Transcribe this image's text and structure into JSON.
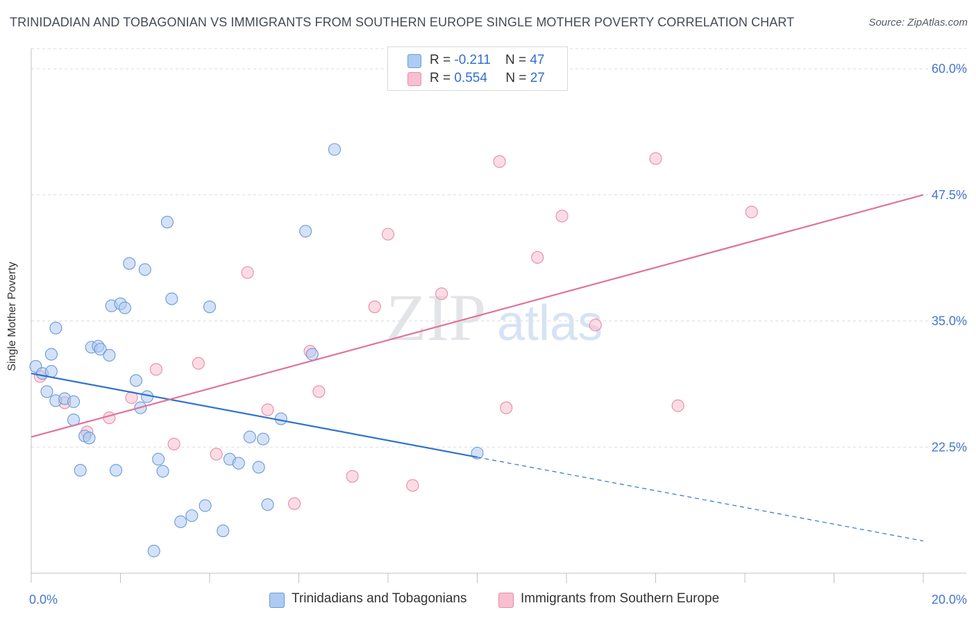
{
  "header": {
    "title": "TRINIDADIAN AND TOBAGONIAN VS IMMIGRANTS FROM SOUTHERN EUROPE SINGLE MOTHER POVERTY CORRELATION CHART",
    "source": "Source: ZipAtlas.com"
  },
  "watermark": {
    "zip": "ZIP",
    "atlas": "atlas"
  },
  "legend": {
    "rows": [
      {
        "r_label": "R = ",
        "r_value": "-0.211",
        "n_label": "N = ",
        "n_value": "47"
      },
      {
        "r_label": "R = ",
        "r_value": "0.554",
        "n_label": "N = ",
        "n_value": "27"
      }
    ]
  },
  "colors": {
    "blue_fill": "#aecbf2",
    "blue_stroke": "#6a9ad8",
    "blue_line": "#2f72cc",
    "pink_fill": "#f7bfd0",
    "pink_stroke": "#e98aa8",
    "pink_line": "#e0729a",
    "tick_label": "#4477cc",
    "grid": "#d8dbe0"
  },
  "chart_data": {
    "type": "scatter",
    "title": "TRINIDADIAN AND TOBAGONIAN VS IMMIGRANTS FROM SOUTHERN EUROPE SINGLE MOTHER POVERTY CORRELATION CHART",
    "xlabel": "",
    "ylabel": "Single Mother Poverty",
    "xlim": [
      0,
      20
    ],
    "ylim": [
      10,
      62
    ],
    "x_tick_labels": [
      "0.0%",
      "20.0%"
    ],
    "x_ticks": [
      0,
      2,
      4,
      6,
      8,
      10,
      12,
      14,
      16,
      18,
      20
    ],
    "y_ticks": [
      22.5,
      35.0,
      47.5,
      60.0
    ],
    "y_tick_labels": [
      "22.5%",
      "35.0%",
      "47.5%",
      "60.0%"
    ],
    "grid": true,
    "legend_position": "top-center",
    "series": [
      {
        "name": "Trinidadians and Tobagonians",
        "r": -0.211,
        "n": 47,
        "trend": {
          "x": [
            0,
            10
          ],
          "y": [
            29.8,
            21.5
          ],
          "dashed_to": [
            20,
            13.2
          ]
        },
        "points": [
          [
            0.1,
            30.5
          ],
          [
            0.25,
            29.8
          ],
          [
            0.35,
            28.0
          ],
          [
            0.45,
            30.0
          ],
          [
            0.55,
            34.3
          ],
          [
            0.45,
            31.7
          ],
          [
            0.55,
            27.1
          ],
          [
            0.75,
            27.3
          ],
          [
            0.95,
            27.0
          ],
          [
            0.95,
            25.2
          ],
          [
            1.1,
            20.2
          ],
          [
            1.2,
            23.6
          ],
          [
            1.3,
            23.4
          ],
          [
            1.35,
            32.4
          ],
          [
            1.5,
            32.5
          ],
          [
            1.55,
            32.2
          ],
          [
            1.75,
            31.6
          ],
          [
            1.8,
            36.5
          ],
          [
            1.9,
            20.2
          ],
          [
            2.0,
            36.7
          ],
          [
            2.1,
            36.3
          ],
          [
            2.2,
            40.7
          ],
          [
            2.35,
            29.1
          ],
          [
            2.45,
            26.4
          ],
          [
            2.55,
            40.1
          ],
          [
            2.6,
            27.5
          ],
          [
            2.75,
            12.2
          ],
          [
            2.85,
            21.3
          ],
          [
            2.95,
            20.1
          ],
          [
            3.05,
            44.8
          ],
          [
            3.15,
            37.2
          ],
          [
            3.35,
            15.1
          ],
          [
            3.6,
            15.7
          ],
          [
            3.9,
            16.7
          ],
          [
            4.0,
            36.4
          ],
          [
            4.3,
            14.2
          ],
          [
            4.45,
            21.3
          ],
          [
            4.65,
            20.9
          ],
          [
            4.9,
            23.5
          ],
          [
            5.1,
            20.5
          ],
          [
            5.2,
            23.3
          ],
          [
            5.3,
            16.8
          ],
          [
            5.6,
            25.3
          ],
          [
            6.15,
            43.9
          ],
          [
            6.3,
            31.7
          ],
          [
            6.8,
            52.0
          ],
          [
            10.0,
            21.9
          ]
        ]
      },
      {
        "name": "Immigrants from Southern Europe",
        "r": 0.554,
        "n": 27,
        "trend": {
          "x": [
            0,
            20
          ],
          "y": [
            23.5,
            47.5
          ]
        },
        "points": [
          [
            0.2,
            29.5
          ],
          [
            0.75,
            26.9
          ],
          [
            1.25,
            24.0
          ],
          [
            1.75,
            25.4
          ],
          [
            2.25,
            27.4
          ],
          [
            2.8,
            30.2
          ],
          [
            3.2,
            22.8
          ],
          [
            3.75,
            30.8
          ],
          [
            4.15,
            21.8
          ],
          [
            4.85,
            39.8
          ],
          [
            5.3,
            26.2
          ],
          [
            5.9,
            16.9
          ],
          [
            6.25,
            32.0
          ],
          [
            6.45,
            28.0
          ],
          [
            7.2,
            19.6
          ],
          [
            7.7,
            36.4
          ],
          [
            8.0,
            43.6
          ],
          [
            8.55,
            18.7
          ],
          [
            9.2,
            37.7
          ],
          [
            10.5,
            50.8
          ],
          [
            10.65,
            26.4
          ],
          [
            11.35,
            41.3
          ],
          [
            11.9,
            45.4
          ],
          [
            12.65,
            34.6
          ],
          [
            14.0,
            51.1
          ],
          [
            14.5,
            26.6
          ],
          [
            16.15,
            45.8
          ]
        ]
      }
    ]
  },
  "bottom_legend": {
    "items": [
      {
        "label": "Trinidadians and Tobagonians"
      },
      {
        "label": "Immigrants from Southern Europe"
      }
    ]
  }
}
